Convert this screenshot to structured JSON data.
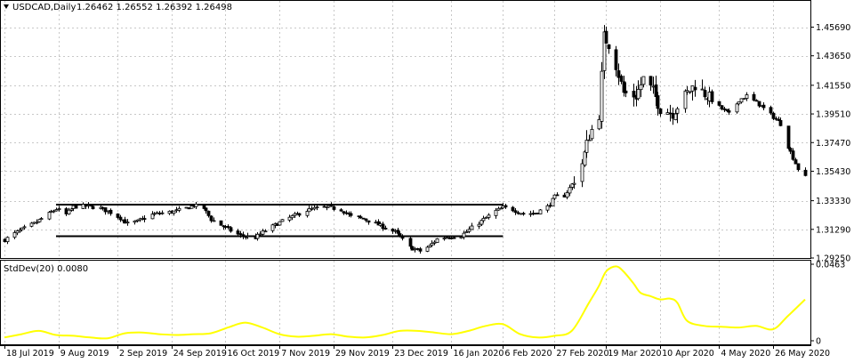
{
  "colors": {
    "background": "#ffffff",
    "grid": "#c8c8c8",
    "frame": "#000000",
    "candle": "#000000",
    "indicator": "#ffff00",
    "text": "#000000"
  },
  "header": {
    "symbol": "USDCAD,Daily",
    "ohlc": "1.26462 1.26552 1.26392 1.26498",
    "triangle_icon": "down-triangle-icon"
  },
  "indicator_panel": {
    "label": "StdDev(20) 0.0080"
  },
  "chart_data": [
    {
      "type": "candlestick",
      "title": "USDCAD,Daily",
      "grid": true,
      "ylim": [
        1.2925,
        1.4756
      ],
      "y_ticks": [
        "1.45690",
        "1.43650",
        "1.41550",
        "1.39510",
        "1.37470",
        "1.35430",
        "1.33330",
        "1.31290",
        "1.29250"
      ],
      "y_tick_values": [
        1.4569,
        1.4365,
        1.4155,
        1.3951,
        1.3747,
        1.3543,
        1.3333,
        1.3129,
        1.2925
      ],
      "x_ticks": [
        "18 Jul 2019",
        "9 Aug 2019",
        "2 Sep 2019",
        "24 Sep 2019",
        "16 Oct 2019",
        "7 Nov 2019",
        "29 Nov 2019",
        "23 Dec 2019",
        "16 Jan 2020",
        "6 Feb 2020",
        "27 Feb 2020",
        "19 Mar 2020",
        "10 Apr 2020",
        "4 May 2020",
        "26 May 2020"
      ],
      "x_start": "2019-07-18",
      "x_end": "2020-06-08",
      "close_path": [
        [
          "2019-07-18",
          1.3055
        ],
        [
          "2019-07-23",
          1.311
        ],
        [
          "2019-07-30",
          1.317
        ],
        [
          "2019-08-05",
          1.324
        ],
        [
          "2019-08-08",
          1.3275
        ],
        [
          "2019-08-12",
          1.3235
        ],
        [
          "2019-08-15",
          1.329
        ],
        [
          "2019-08-20",
          1.3295
        ],
        [
          "2019-08-26",
          1.328
        ],
        [
          "2019-08-30",
          1.325
        ],
        [
          "2019-09-03",
          1.321
        ],
        [
          "2019-09-06",
          1.317
        ],
        [
          "2019-09-10",
          1.3185
        ],
        [
          "2019-09-16",
          1.3235
        ],
        [
          "2019-09-20",
          1.3245
        ],
        [
          "2019-09-25",
          1.3255
        ],
        [
          "2019-09-30",
          1.328
        ],
        [
          "2019-10-03",
          1.33
        ],
        [
          "2019-10-07",
          1.328
        ],
        [
          "2019-10-10",
          1.32
        ],
        [
          "2019-10-14",
          1.316
        ],
        [
          "2019-10-18",
          1.312
        ],
        [
          "2019-10-22",
          1.3085
        ],
        [
          "2019-10-28",
          1.307
        ],
        [
          "2019-11-01",
          1.312
        ],
        [
          "2019-11-06",
          1.317
        ],
        [
          "2019-11-12",
          1.322
        ],
        [
          "2019-11-18",
          1.3265
        ],
        [
          "2019-11-22",
          1.328
        ],
        [
          "2019-11-27",
          1.3285
        ],
        [
          "2019-12-02",
          1.327
        ],
        [
          "2019-12-06",
          1.322
        ],
        [
          "2019-12-11",
          1.3205
        ],
        [
          "2019-12-16",
          1.317
        ],
        [
          "2019-12-20",
          1.314
        ],
        [
          "2019-12-24",
          1.311
        ],
        [
          "2019-12-30",
          1.3
        ],
        [
          "2020-01-03",
          1.2975
        ],
        [
          "2020-01-07",
          1.301
        ],
        [
          "2020-01-10",
          1.306
        ],
        [
          "2020-01-14",
          1.3075
        ],
        [
          "2020-01-20",
          1.3085
        ],
        [
          "2020-01-24",
          1.314
        ],
        [
          "2020-01-29",
          1.32
        ],
        [
          "2020-02-03",
          1.326
        ],
        [
          "2020-02-06",
          1.3285
        ],
        [
          "2020-02-10",
          1.327
        ],
        [
          "2020-02-14",
          1.324
        ],
        [
          "2020-02-19",
          1.3245
        ],
        [
          "2020-02-24",
          1.329
        ],
        [
          "2020-02-27",
          1.336
        ],
        [
          "2020-03-02",
          1.337
        ],
        [
          "2020-03-05",
          1.345
        ],
        [
          "2020-03-09",
          1.36
        ],
        [
          "2020-03-12",
          1.38
        ],
        [
          "2020-03-16",
          1.395
        ],
        [
          "2020-03-18",
          1.45
        ],
        [
          "2020-03-20",
          1.445
        ],
        [
          "2020-03-23",
          1.43
        ],
        [
          "2020-03-26",
          1.41
        ],
        [
          "2020-03-31",
          1.408
        ],
        [
          "2020-04-03",
          1.42
        ],
        [
          "2020-04-07",
          1.411
        ],
        [
          "2020-04-10",
          1.399
        ],
        [
          "2020-04-15",
          1.396
        ],
        [
          "2020-04-20",
          1.408
        ],
        [
          "2020-04-24",
          1.416
        ],
        [
          "2020-04-29",
          1.408
        ],
        [
          "2020-05-04",
          1.4
        ],
        [
          "2020-05-08",
          1.395
        ],
        [
          "2020-05-12",
          1.405
        ],
        [
          "2020-05-15",
          1.408
        ],
        [
          "2020-05-20",
          1.402
        ],
        [
          "2020-05-26",
          1.393
        ],
        [
          "2020-05-29",
          1.388
        ],
        [
          "2020-06-01",
          1.372
        ],
        [
          "2020-06-05",
          1.356
        ],
        [
          "2020-06-08",
          1.35
        ]
      ],
      "annotations": [
        {
          "type": "horizontal-line",
          "level": 1.3305,
          "from": "2019-08-08",
          "to": "2020-02-06"
        },
        {
          "type": "horizontal-line",
          "level": 1.308,
          "from": "2019-08-08",
          "to": "2020-02-06"
        }
      ]
    },
    {
      "type": "line",
      "title": "StdDev(20) 0.0080",
      "color": "#ffff00",
      "grid": true,
      "ylim": [
        0,
        0.0463
      ],
      "y_ticks": [
        "0.0463",
        "0"
      ],
      "y_tick_values": [
        0.0463,
        0
      ],
      "series": [
        {
          "x": [
            "2019-07-18",
            "2019-07-25",
            "2019-08-01",
            "2019-08-08",
            "2019-08-15",
            "2019-08-22",
            "2019-08-29",
            "2019-09-05",
            "2019-09-12",
            "2019-09-19",
            "2019-09-26",
            "2019-10-03",
            "2019-10-10",
            "2019-10-17",
            "2019-10-24",
            "2019-10-31",
            "2019-11-07",
            "2019-11-14",
            "2019-11-21",
            "2019-11-28",
            "2019-12-05",
            "2019-12-12",
            "2019-12-19",
            "2019-12-26",
            "2020-01-02",
            "2020-01-09",
            "2020-01-16",
            "2020-01-23",
            "2020-01-30",
            "2020-02-06",
            "2020-02-13",
            "2020-02-20",
            "2020-02-27",
            "2020-03-05",
            "2020-03-12",
            "2020-03-16",
            "2020-03-19",
            "2020-03-23",
            "2020-03-26",
            "2020-03-30",
            "2020-04-02",
            "2020-04-06",
            "2020-04-10",
            "2020-04-14",
            "2020-04-17",
            "2020-04-21",
            "2020-04-28",
            "2020-05-05",
            "2020-05-12",
            "2020-05-19",
            "2020-05-26",
            "2020-06-01",
            "2020-06-08"
          ],
          "values": [
            0.002,
            0.004,
            0.006,
            0.0035,
            0.003,
            0.002,
            0.0015,
            0.0045,
            0.005,
            0.004,
            0.0035,
            0.004,
            0.0045,
            0.008,
            0.011,
            0.008,
            0.004,
            0.0025,
            0.003,
            0.004,
            0.0025,
            0.002,
            0.0035,
            0.006,
            0.006,
            0.005,
            0.004,
            0.006,
            0.009,
            0.01,
            0.004,
            0.002,
            0.003,
            0.006,
            0.023,
            0.033,
            0.042,
            0.045,
            0.042,
            0.035,
            0.029,
            0.027,
            0.025,
            0.0255,
            0.023,
            0.012,
            0.009,
            0.0085,
            0.008,
            0.009,
            0.007,
            0.015,
            0.025
          ]
        }
      ]
    }
  ]
}
